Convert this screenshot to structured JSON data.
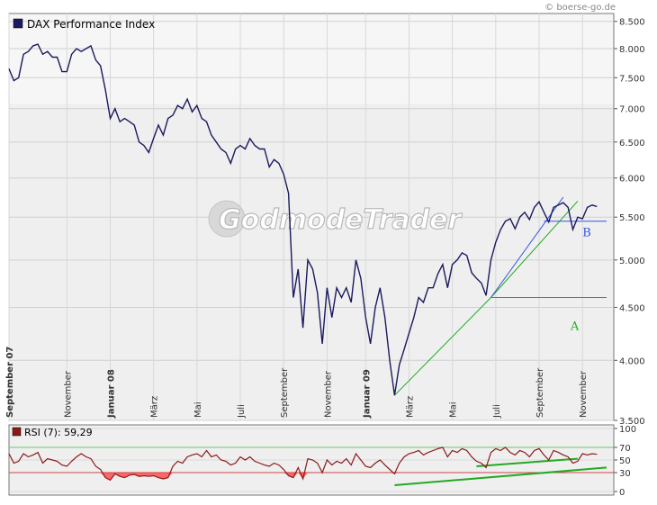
{
  "credit": "© boerse-go.de",
  "watermark": "GodmodeTrader",
  "colors": {
    "price": "#1a1a5e",
    "rsi": "#8b1a1a",
    "trend_blue": "#3355dd",
    "trend_green": "#22aa22",
    "rsi_fill": "#ff6666"
  },
  "chart_data": [
    {
      "type": "line",
      "legend": "DAX Performance Index",
      "y_scale": "log",
      "ylim": [
        3500,
        8650
      ],
      "y_ticks": [
        "8.500",
        "8.000",
        "7.500",
        "7.000",
        "6.500",
        "6.000",
        "5.500",
        "5.000",
        "4.500",
        "4.000",
        "3.500"
      ],
      "y_tick_values": [
        8500,
        8000,
        7500,
        7000,
        6500,
        6000,
        5500,
        5000,
        4500,
        4000,
        3500
      ],
      "x_labels": [
        {
          "label": "September 07",
          "t": 0,
          "bold": true
        },
        {
          "label": "November",
          "t": 12,
          "bold": false
        },
        {
          "label": "Januar 08",
          "t": 21,
          "bold": true
        },
        {
          "label": "März",
          "t": 30,
          "bold": false
        },
        {
          "label": "Mai",
          "t": 39,
          "bold": false
        },
        {
          "label": "Juli",
          "t": 48,
          "bold": false
        },
        {
          "label": "September",
          "t": 57,
          "bold": false
        },
        {
          "label": "November",
          "t": 66,
          "bold": false
        },
        {
          "label": "Januar 09",
          "t": 74,
          "bold": true
        },
        {
          "label": "März",
          "t": 83,
          "bold": false
        },
        {
          "label": "Mai",
          "t": 92,
          "bold": false
        },
        {
          "label": "Juli",
          "t": 101,
          "bold": false
        },
        {
          "label": "September",
          "t": 110,
          "bold": false
        },
        {
          "label": "November",
          "t": 119,
          "bold": false
        }
      ],
      "t_range": [
        0,
        124
      ],
      "series": [
        {
          "values": [
            7650,
            7450,
            7500,
            7900,
            7950,
            8050,
            8080,
            7900,
            7950,
            7850,
            7850,
            7600,
            7600,
            7900,
            8000,
            7950,
            8000,
            8050,
            7800,
            7700,
            7300,
            6850,
            7000,
            6800,
            6850,
            6800,
            6750,
            6500,
            6450,
            6350,
            6550,
            6750,
            6600,
            6850,
            6900,
            7050,
            7000,
            7150,
            6950,
            7050,
            6850,
            6800,
            6600,
            6500,
            6400,
            6350,
            6200,
            6400,
            6450,
            6400,
            6550,
            6450,
            6400,
            6400,
            6150,
            6250,
            6200,
            6050,
            5800,
            4600,
            4900,
            4300,
            5000,
            4900,
            4650,
            4150,
            4700,
            4400,
            4700,
            4600,
            4700,
            4550,
            5000,
            4800,
            4400,
            4150,
            4500,
            4700,
            4400,
            4000,
            3700,
            3960,
            4100,
            4250,
            4400,
            4600,
            4550,
            4700,
            4700,
            4850,
            4950,
            4700,
            4950,
            5000,
            5080,
            5050,
            4860,
            4800,
            4750,
            4620,
            5000,
            5200,
            5350,
            5450,
            5480,
            5360,
            5500,
            5560,
            5470,
            5620,
            5690,
            5560,
            5440,
            5620,
            5650,
            5680,
            5620,
            5350,
            5500,
            5480,
            5620,
            5650,
            5630
          ]
        }
      ],
      "annotations": [
        {
          "text": "B",
          "t": 119,
          "value": 5270,
          "color": "#3355dd"
        },
        {
          "text": "A",
          "t": 116.5,
          "value": 4280,
          "color": "#22aa22"
        }
      ],
      "trendlines": [
        {
          "name": "green-support",
          "color": "#22aa22",
          "points": [
            [
              80,
              3700
            ],
            [
              100,
              4600
            ],
            [
              118,
              5700
            ]
          ]
        },
        {
          "name": "blue-trend",
          "color": "#3355dd",
          "points": [
            [
              100,
              4600
            ],
            [
              115,
              5750
            ]
          ]
        },
        {
          "name": "blue-horizontal",
          "color": "#3355dd",
          "points": [
            [
              111,
              5450
            ],
            [
              124,
              5450
            ]
          ]
        },
        {
          "name": "green-horizontal",
          "color": "#22aa22",
          "points": [
            [
              100,
              4600
            ],
            [
              124,
              4600
            ]
          ]
        }
      ]
    },
    {
      "type": "line",
      "legend": "RSI (7): 59,29",
      "ylim": [
        0,
        100
      ],
      "y_ticks": [
        "100",
        "70",
        "50",
        "30",
        "0"
      ],
      "y_tick_values": [
        100,
        70,
        50,
        30,
        0
      ],
      "reference_lines": [
        70,
        30
      ],
      "t_range": [
        0,
        124
      ],
      "series": [
        {
          "values": [
            60,
            45,
            48,
            60,
            55,
            58,
            62,
            45,
            52,
            50,
            48,
            42,
            40,
            48,
            55,
            60,
            55,
            52,
            40,
            35,
            22,
            18,
            28,
            24,
            22,
            26,
            27,
            24,
            25,
            24,
            25,
            22,
            20,
            22,
            40,
            48,
            45,
            55,
            58,
            60,
            55,
            65,
            55,
            58,
            50,
            48,
            42,
            45,
            55,
            50,
            55,
            48,
            45,
            42,
            40,
            45,
            42,
            35,
            25,
            22,
            38,
            20,
            52,
            50,
            45,
            30,
            50,
            42,
            48,
            45,
            52,
            42,
            60,
            50,
            40,
            38,
            45,
            50,
            42,
            35,
            28,
            45,
            55,
            60,
            62,
            65,
            58,
            62,
            65,
            68,
            70,
            55,
            65,
            62,
            68,
            65,
            55,
            48,
            45,
            38,
            62,
            68,
            65,
            70,
            62,
            58,
            65,
            62,
            55,
            65,
            68,
            58,
            50,
            65,
            62,
            58,
            55,
            45,
            48,
            60,
            58,
            60,
            59
          ]
        }
      ],
      "trendlines": [
        {
          "name": "rsi-trend-1",
          "color": "#22aa22",
          "points": [
            [
              80,
              10
            ],
            [
              124,
              38
            ]
          ]
        },
        {
          "name": "rsi-trend-2",
          "color": "#22aa22",
          "points": [
            [
              97,
              40
            ],
            [
              118,
              52
            ]
          ]
        }
      ]
    }
  ]
}
